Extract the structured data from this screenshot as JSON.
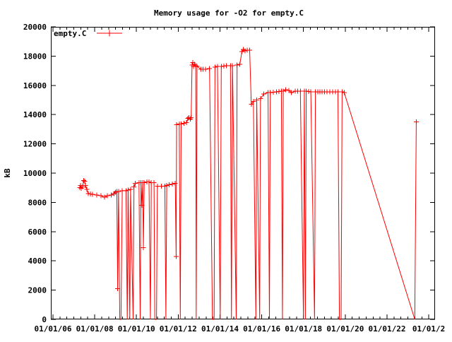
{
  "colors": {
    "series": "#ff0000",
    "axis": "#000000",
    "background": "#ffffff"
  },
  "chart_data": {
    "type": "line",
    "title": "Memory usage for -O2 for empty.C",
    "xlabel": "",
    "ylabel": "kB",
    "grid": false,
    "legend": {
      "position": "top-left-inside",
      "entries": [
        {
          "label": "empty.C",
          "color": "#ff0000",
          "marker": "plus"
        }
      ]
    },
    "x_axis": {
      "range": [
        2005.9,
        2024.3
      ],
      "tick_years": [
        2006,
        2008,
        2010,
        2012,
        2014,
        2016,
        2018,
        2020,
        2022,
        2024
      ],
      "tick_labels": [
        "01/01/06",
        "01/01/08",
        "01/01/10",
        "01/01/12",
        "01/01/14",
        "01/01/16",
        "01/01/18",
        "01/01/20",
        "01/01/22",
        "01/01/2"
      ],
      "minor_tick_step_years": 0.3333
    },
    "y_axis": {
      "range": [
        0,
        20000
      ],
      "ticks": [
        0,
        2000,
        4000,
        6000,
        8000,
        10000,
        12000,
        14000,
        16000,
        18000,
        20000
      ],
      "tick_labels": [
        "0",
        "2000",
        "4000",
        "6000",
        "8000",
        "10000",
        "12000",
        "14000",
        "16000",
        "18000",
        "20000"
      ]
    },
    "series": [
      {
        "name": "empty.C",
        "color": "#ff0000",
        "marker": "plus",
        "points": [
          [
            2007.28,
            9000
          ],
          [
            2007.32,
            9150
          ],
          [
            2007.36,
            8950
          ],
          [
            2007.42,
            9050
          ],
          [
            2007.47,
            9500
          ],
          [
            2007.52,
            9450
          ],
          [
            2007.56,
            9150
          ],
          [
            2007.62,
            8900
          ],
          [
            2007.69,
            8600
          ],
          [
            2007.9,
            8550
          ],
          [
            2008.1,
            8500
          ],
          [
            2008.3,
            8450
          ],
          [
            2008.47,
            8350
          ],
          [
            2008.6,
            8450
          ],
          [
            2008.8,
            8500
          ],
          [
            2008.92,
            8600
          ],
          [
            2009.0,
            8700
          ],
          [
            2009.06,
            8750
          ],
          [
            2009.1,
            2100
          ],
          [
            2009.14,
            8750
          ],
          [
            2009.2,
            0
          ],
          [
            2009.26,
            0
          ],
          [
            2009.32,
            8800
          ],
          [
            2009.5,
            8800
          ],
          [
            2009.56,
            0
          ],
          [
            2009.6,
            8850
          ],
          [
            2009.68,
            0
          ],
          [
            2009.72,
            8900
          ],
          [
            2009.84,
            0
          ],
          [
            2009.88,
            9050
          ],
          [
            2009.94,
            9300
          ],
          [
            2010.12,
            9350
          ],
          [
            2010.18,
            0
          ],
          [
            2010.22,
            9350
          ],
          [
            2010.26,
            7800
          ],
          [
            2010.3,
            9350
          ],
          [
            2010.33,
            4900
          ],
          [
            2010.37,
            9350
          ],
          [
            2010.5,
            9400
          ],
          [
            2010.6,
            9400
          ],
          [
            2010.67,
            0
          ],
          [
            2010.71,
            9350
          ],
          [
            2010.84,
            9350
          ],
          [
            2010.88,
            0
          ],
          [
            2010.96,
            0
          ],
          [
            2011.0,
            9100
          ],
          [
            2011.2,
            9100
          ],
          [
            2011.36,
            9100
          ],
          [
            2011.41,
            0
          ],
          [
            2011.45,
            9150
          ],
          [
            2011.57,
            9200
          ],
          [
            2011.72,
            9250
          ],
          [
            2011.86,
            9300
          ],
          [
            2011.9,
            4300
          ],
          [
            2011.92,
            13300
          ],
          [
            2012.05,
            13350
          ],
          [
            2012.1,
            0
          ],
          [
            2012.14,
            13350
          ],
          [
            2012.4,
            13450
          ],
          [
            2012.46,
            13750
          ],
          [
            2012.52,
            13800
          ],
          [
            2012.58,
            13700
          ],
          [
            2012.62,
            13800
          ],
          [
            2012.66,
            17400
          ],
          [
            2012.7,
            17550
          ],
          [
            2012.74,
            17300
          ],
          [
            2012.78,
            17450
          ],
          [
            2012.84,
            17350
          ],
          [
            2012.86,
            0
          ],
          [
            2012.9,
            17300
          ],
          [
            2013.09,
            17100
          ],
          [
            2013.3,
            17100
          ],
          [
            2013.5,
            17150
          ],
          [
            2013.64,
            0
          ],
          [
            2013.72,
            0
          ],
          [
            2013.76,
            17250
          ],
          [
            2013.88,
            17300
          ],
          [
            2014.01,
            0
          ],
          [
            2014.06,
            17300
          ],
          [
            2014.3,
            17350
          ],
          [
            2014.5,
            17350
          ],
          [
            2014.55,
            0
          ],
          [
            2014.6,
            17350
          ],
          [
            2014.78,
            0
          ],
          [
            2014.82,
            17400
          ],
          [
            2014.95,
            17450
          ],
          [
            2015.05,
            18300
          ],
          [
            2015.12,
            18450
          ],
          [
            2015.2,
            18350
          ],
          [
            2015.3,
            18400
          ],
          [
            2015.42,
            18400
          ],
          [
            2015.5,
            14700
          ],
          [
            2015.6,
            14900
          ],
          [
            2015.72,
            0
          ],
          [
            2015.76,
            15000
          ],
          [
            2015.9,
            0
          ],
          [
            2015.94,
            15100
          ],
          [
            2016.1,
            15400
          ],
          [
            2016.3,
            15500
          ],
          [
            2016.37,
            0
          ],
          [
            2016.41,
            15500
          ],
          [
            2016.7,
            15550
          ],
          [
            2016.94,
            15600
          ],
          [
            2016.99,
            0
          ],
          [
            2017.03,
            15600
          ],
          [
            2017.15,
            15700
          ],
          [
            2017.3,
            15650
          ],
          [
            2017.42,
            15500
          ],
          [
            2017.6,
            15600
          ],
          [
            2017.85,
            15600
          ],
          [
            2018.0,
            0
          ],
          [
            2018.04,
            15600
          ],
          [
            2018.09,
            0
          ],
          [
            2018.13,
            15600
          ],
          [
            2018.35,
            15550
          ],
          [
            2018.53,
            0
          ],
          [
            2018.57,
            15550
          ],
          [
            2019.0,
            15550
          ],
          [
            2019.4,
            15550
          ],
          [
            2019.65,
            15550
          ],
          [
            2019.72,
            0
          ],
          [
            2019.8,
            0
          ],
          [
            2019.85,
            15550
          ],
          [
            2019.95,
            15500
          ],
          [
            2023.33,
            0
          ],
          [
            2023.4,
            13500
          ]
        ]
      }
    ]
  }
}
